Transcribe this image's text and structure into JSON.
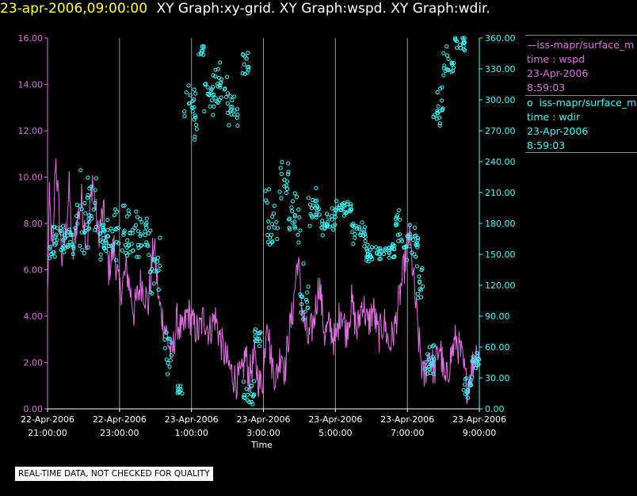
{
  "header": {
    "timestamp": "23-apr-2006,09:00:00",
    "graphs": "XY Graph:xy-grid.  XY Graph:wspd.  XY Graph:wdir."
  },
  "legend": {
    "wspd": {
      "name": "iss-mapr/surface_m",
      "line2": "time : wspd",
      "line3": "23-Apr-2006",
      "line4": "8:59:03",
      "color": "#e070e0"
    },
    "wdir": {
      "name": "iss-mapr/surface_m",
      "line2": "time : wdir",
      "line3": "23-Apr-2006",
      "line4": "8:59:03",
      "color": "#33ffff"
    }
  },
  "notice": "REAL-TIME DATA, NOT CHECKED FOR QUALITY",
  "chart_data": {
    "type": "line",
    "xlabel": "Time",
    "x_ticks": [
      {
        "hours": 0,
        "line1": "22-Apr-2006",
        "line2": "21:00:00"
      },
      {
        "hours": 2,
        "line1": "22-Apr-2006",
        "line2": "23:00:00"
      },
      {
        "hours": 4,
        "line1": "23-Apr-2006",
        "line2": "1:00:00"
      },
      {
        "hours": 6,
        "line1": "23-Apr-2006",
        "line2": "3:00:00"
      },
      {
        "hours": 8,
        "line1": "23-Apr-2006",
        "line2": "5:00:00"
      },
      {
        "hours": 10,
        "line1": "23-Apr-2006",
        "line2": "7:00:00"
      },
      {
        "hours": 12,
        "line1": "23-Apr-2006",
        "line2": "9:00:00"
      }
    ],
    "x_range_hours": [
      0,
      12
    ],
    "grid": "vertical",
    "y_left": {
      "ticks": [
        "0.00",
        "2.00",
        "4.00",
        "6.00",
        "8.00",
        "10.00",
        "12.00",
        "14.00",
        "16.00"
      ],
      "range": [
        0,
        16
      ],
      "color": "#e070e0"
    },
    "y_right": {
      "ticks": [
        "0.00",
        "30.00",
        "60.00",
        "90.00",
        "120.00",
        "150.00",
        "180.00",
        "210.00",
        "240.00",
        "270.00",
        "300.00",
        "330.00",
        "360.00"
      ],
      "range": [
        0,
        360
      ],
      "color": "#33ffff"
    },
    "series": [
      {
        "name": "time : wspd",
        "style": "line",
        "axis": "left",
        "color": "#e070e0",
        "knots": [
          [
            0,
            4.8
          ],
          [
            0.05,
            9
          ],
          [
            0.15,
            6.5
          ],
          [
            0.22,
            11
          ],
          [
            0.3,
            9
          ],
          [
            0.4,
            6.5
          ],
          [
            0.5,
            7.5
          ],
          [
            0.6,
            9.5
          ],
          [
            0.7,
            6.5
          ],
          [
            0.8,
            8
          ],
          [
            0.95,
            9
          ],
          [
            1.1,
            7
          ],
          [
            1.25,
            10
          ],
          [
            1.4,
            7.5
          ],
          [
            1.55,
            8.5
          ],
          [
            1.7,
            6
          ],
          [
            1.85,
            7
          ],
          [
            2.0,
            5
          ],
          [
            2.2,
            6
          ],
          [
            2.4,
            4.2
          ],
          [
            2.6,
            5.5
          ],
          [
            2.8,
            4.5
          ],
          [
            2.95,
            7.2
          ],
          [
            3.1,
            4.5
          ],
          [
            3.3,
            3.3
          ],
          [
            3.45,
            2.2
          ],
          [
            3.6,
            3.8
          ],
          [
            3.75,
            3.2
          ],
          [
            3.9,
            4.2
          ],
          [
            4.05,
            3.6
          ],
          [
            4.2,
            3.3
          ],
          [
            4.35,
            4.0
          ],
          [
            4.5,
            3.3
          ],
          [
            4.65,
            4.0
          ],
          [
            4.8,
            3.0
          ],
          [
            4.95,
            2.2
          ],
          [
            5.1,
            1.6
          ],
          [
            5.25,
            1.2
          ],
          [
            5.4,
            1.4
          ],
          [
            5.5,
            2.4
          ],
          [
            5.6,
            1.4
          ],
          [
            5.75,
            2.2
          ],
          [
            5.9,
            1.0
          ],
          [
            6.0,
            1.4
          ],
          [
            6.1,
            4.3
          ],
          [
            6.2,
            2.2
          ],
          [
            6.35,
            1.3
          ],
          [
            6.5,
            2.6
          ],
          [
            6.6,
            1.6
          ],
          [
            6.7,
            3.2
          ],
          [
            6.8,
            4.0
          ],
          [
            6.95,
            6.5
          ],
          [
            7.1,
            4.0
          ],
          [
            7.25,
            2.9
          ],
          [
            7.4,
            3.8
          ],
          [
            7.55,
            5.5
          ],
          [
            7.7,
            3.2
          ],
          [
            7.85,
            3.6
          ],
          [
            8.0,
            2.8
          ],
          [
            8.15,
            4.4
          ],
          [
            8.3,
            3.3
          ],
          [
            8.45,
            4.6
          ],
          [
            8.6,
            3.3
          ],
          [
            8.75,
            4.7
          ],
          [
            8.9,
            3.6
          ],
          [
            9.05,
            4.3
          ],
          [
            9.2,
            3.1
          ],
          [
            9.35,
            3.8
          ],
          [
            9.5,
            2.7
          ],
          [
            9.65,
            3.5
          ],
          [
            9.8,
            5.0
          ],
          [
            9.95,
            6.5
          ],
          [
            10.05,
            7.5
          ],
          [
            10.15,
            6.0
          ],
          [
            10.3,
            3.2
          ],
          [
            10.45,
            1.2
          ],
          [
            10.6,
            2.5
          ],
          [
            10.75,
            1.6
          ],
          [
            10.9,
            2.8
          ],
          [
            11.05,
            1.0
          ],
          [
            11.2,
            2.2
          ],
          [
            11.35,
            3.0
          ],
          [
            11.5,
            2.3
          ],
          [
            11.65,
            1.0
          ],
          [
            11.75,
            1.5
          ],
          [
            11.9,
            2.4
          ],
          [
            12.0,
            2.5
          ]
        ]
      },
      {
        "name": "time : wdir",
        "style": "scatter",
        "axis": "right",
        "color": "#33ffff",
        "clusters": [
          [
            0.05,
            0.8,
            165,
            22
          ],
          [
            0.8,
            1.35,
            190,
            45
          ],
          [
            1.35,
            1.85,
            165,
            25
          ],
          [
            1.85,
            2.85,
            170,
            30
          ],
          [
            2.85,
            3.15,
            145,
            35
          ],
          [
            3.25,
            3.45,
            50,
            25
          ],
          [
            3.6,
            3.75,
            20,
            15
          ],
          [
            3.8,
            4.15,
            290,
            35
          ],
          [
            4.2,
            4.35,
            350,
            10
          ],
          [
            4.35,
            4.7,
            305,
            30
          ],
          [
            4.7,
            5.0,
            315,
            25
          ],
          [
            5.0,
            5.3,
            290,
            20
          ],
          [
            5.4,
            5.6,
            335,
            15
          ],
          [
            5.45,
            5.75,
            15,
            15
          ],
          [
            5.75,
            5.95,
            70,
            15
          ],
          [
            6.05,
            6.4,
            185,
            40
          ],
          [
            6.45,
            6.7,
            220,
            25
          ],
          [
            6.7,
            7.05,
            180,
            40
          ],
          [
            7.0,
            7.25,
            110,
            35
          ],
          [
            7.25,
            7.6,
            195,
            25
          ],
          [
            7.6,
            8.0,
            180,
            18
          ],
          [
            8.0,
            8.45,
            195,
            8
          ],
          [
            8.45,
            8.85,
            170,
            15
          ],
          [
            8.85,
            9.3,
            150,
            10
          ],
          [
            9.3,
            9.65,
            155,
            10
          ],
          [
            9.65,
            9.85,
            175,
            25
          ],
          [
            9.85,
            10.3,
            160,
            20
          ],
          [
            10.25,
            10.45,
            120,
            30
          ],
          [
            10.45,
            10.75,
            45,
            20
          ],
          [
            10.7,
            11.0,
            290,
            35
          ],
          [
            11.0,
            11.3,
            335,
            25
          ],
          [
            11.3,
            11.6,
            355,
            8
          ],
          [
            11.55,
            11.8,
            20,
            20
          ],
          [
            11.8,
            12.0,
            45,
            15
          ]
        ]
      }
    ]
  }
}
